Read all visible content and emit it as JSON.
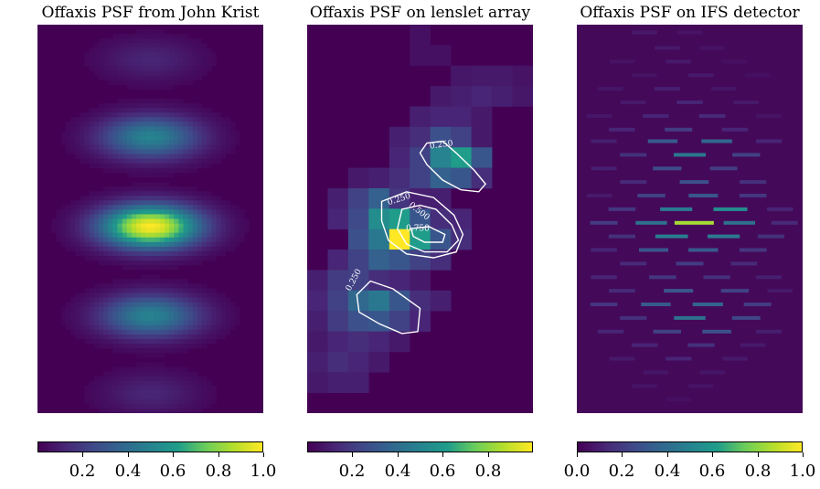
{
  "colors": {
    "viridis": [
      "#440154",
      "#482777",
      "#3f4a8a",
      "#31678e",
      "#26838f",
      "#1f9d8a",
      "#6cce5a",
      "#b6de2b",
      "#fee825"
    ],
    "background": "#440154",
    "contour": "#ffffff"
  },
  "chart_data": [
    {
      "type": "heatmap",
      "title": "Offaxis PSF from John Krist",
      "colorbar": {
        "ticks": [
          "0.2",
          "0.4",
          "0.6",
          "0.8",
          "1.0"
        ],
        "range": [
          0,
          1
        ]
      },
      "lobes": [
        {
          "y": 0.09,
          "peak": 0.12
        },
        {
          "y": 0.29,
          "peak": 0.5
        },
        {
          "y": 0.52,
          "peak": 1.0
        },
        {
          "y": 0.75,
          "peak": 0.5
        },
        {
          "y": 0.95,
          "peak": 0.12
        }
      ]
    },
    {
      "type": "heatmap",
      "title": "Offaxis PSF on lenslet array",
      "colorbar": {
        "ticks": [
          "0.2",
          "0.4",
          "0.6",
          "0.8"
        ],
        "range": [
          0,
          1
        ]
      },
      "grid": {
        "cols": 11,
        "rows": 19
      },
      "cells": [
        [
          5,
          0,
          0.05
        ],
        [
          5,
          1,
          0.05
        ],
        [
          6,
          1,
          0.05
        ],
        [
          7,
          2,
          0.07
        ],
        [
          8,
          2,
          0.08
        ],
        [
          9,
          2,
          0.08
        ],
        [
          10,
          2,
          0.06
        ],
        [
          6,
          3,
          0.08
        ],
        [
          7,
          3,
          0.1
        ],
        [
          8,
          3,
          0.12
        ],
        [
          9,
          3,
          0.1
        ],
        [
          10,
          3,
          0.07
        ],
        [
          5,
          4,
          0.1
        ],
        [
          6,
          4,
          0.12
        ],
        [
          7,
          4,
          0.12
        ],
        [
          8,
          4,
          0.08
        ],
        [
          4,
          5,
          0.1
        ],
        [
          5,
          5,
          0.15
        ],
        [
          6,
          5,
          0.28
        ],
        [
          7,
          5,
          0.22
        ],
        [
          8,
          5,
          0.08
        ],
        [
          4,
          6,
          0.12
        ],
        [
          5,
          6,
          0.22
        ],
        [
          6,
          6,
          0.5
        ],
        [
          7,
          6,
          0.62
        ],
        [
          8,
          6,
          0.3
        ],
        [
          2,
          7,
          0.08
        ],
        [
          3,
          7,
          0.1
        ],
        [
          4,
          7,
          0.15
        ],
        [
          5,
          7,
          0.22
        ],
        [
          6,
          7,
          0.35
        ],
        [
          7,
          7,
          0.3
        ],
        [
          8,
          7,
          0.15
        ],
        [
          1,
          8,
          0.1
        ],
        [
          2,
          8,
          0.22
        ],
        [
          3,
          8,
          0.35
        ],
        [
          4,
          8,
          0.18
        ],
        [
          5,
          8,
          0.1
        ],
        [
          6,
          8,
          0.1
        ],
        [
          1,
          9,
          0.12
        ],
        [
          2,
          9,
          0.25
        ],
        [
          3,
          9,
          0.55
        ],
        [
          4,
          9,
          0.62
        ],
        [
          5,
          9,
          0.3
        ],
        [
          6,
          9,
          0.15
        ],
        [
          7,
          9,
          0.12
        ],
        [
          2,
          10,
          0.28
        ],
        [
          3,
          10,
          0.45
        ],
        [
          4,
          10,
          1.0
        ],
        [
          5,
          10,
          0.62
        ],
        [
          6,
          10,
          0.3
        ],
        [
          7,
          10,
          0.15
        ],
        [
          1,
          11,
          0.12
        ],
        [
          2,
          11,
          0.22
        ],
        [
          3,
          11,
          0.35
        ],
        [
          4,
          11,
          0.3
        ],
        [
          5,
          11,
          0.22
        ],
        [
          6,
          11,
          0.15
        ],
        [
          0,
          12,
          0.1
        ],
        [
          1,
          12,
          0.2
        ],
        [
          2,
          12,
          0.22
        ],
        [
          3,
          12,
          0.15
        ],
        [
          4,
          12,
          0.12
        ],
        [
          5,
          12,
          0.08
        ],
        [
          0,
          13,
          0.12
        ],
        [
          1,
          13,
          0.22
        ],
        [
          2,
          13,
          0.38
        ],
        [
          3,
          13,
          0.45
        ],
        [
          4,
          13,
          0.3
        ],
        [
          5,
          13,
          0.15
        ],
        [
          6,
          13,
          0.1
        ],
        [
          0,
          14,
          0.1
        ],
        [
          1,
          14,
          0.2
        ],
        [
          2,
          14,
          0.28
        ],
        [
          3,
          14,
          0.3
        ],
        [
          4,
          14,
          0.22
        ],
        [
          5,
          14,
          0.12
        ],
        [
          0,
          15,
          0.08
        ],
        [
          1,
          15,
          0.12
        ],
        [
          2,
          15,
          0.15
        ],
        [
          3,
          15,
          0.12
        ],
        [
          4,
          15,
          0.08
        ],
        [
          0,
          16,
          0.1
        ],
        [
          1,
          16,
          0.15
        ],
        [
          2,
          16,
          0.12
        ],
        [
          3,
          16,
          0.08
        ],
        [
          0,
          17,
          0.08
        ],
        [
          1,
          17,
          0.1
        ],
        [
          2,
          17,
          0.1
        ]
      ],
      "contour_labels": [
        {
          "text": "0.250",
          "x": 0.595,
          "y": 0.315,
          "rot": -8
        },
        {
          "text": "0.250",
          "x": 0.41,
          "y": 0.455,
          "rot": -18
        },
        {
          "text": "0.500",
          "x": 0.49,
          "y": 0.485,
          "rot": 38
        },
        {
          "text": "0.750",
          "x": 0.49,
          "y": 0.53,
          "rot": 0
        },
        {
          "text": "0.250",
          "x": 0.215,
          "y": 0.66,
          "rot": -62
        }
      ]
    },
    {
      "type": "heatmap",
      "title": "Offaxis PSF on IFS detector",
      "colorbar": {
        "ticks": [
          "0.0",
          "0.2",
          "0.4",
          "0.6",
          "0.8",
          "1.0"
        ],
        "range": [
          0,
          1
        ]
      },
      "dashes": [
        [
          0.3,
          0.02,
          0.08
        ],
        [
          0.5,
          0.02,
          0.06
        ],
        [
          0.4,
          0.06,
          0.08
        ],
        [
          0.6,
          0.06,
          0.06
        ],
        [
          0.2,
          0.095,
          0.06
        ],
        [
          0.45,
          0.095,
          0.08
        ],
        [
          0.7,
          0.095,
          0.05
        ],
        [
          0.3,
          0.13,
          0.06
        ],
        [
          0.55,
          0.13,
          0.08
        ],
        [
          0.8,
          0.13,
          0.05
        ],
        [
          0.15,
          0.165,
          0.07
        ],
        [
          0.4,
          0.165,
          0.1
        ],
        [
          0.65,
          0.165,
          0.07
        ],
        [
          0.25,
          0.2,
          0.08
        ],
        [
          0.5,
          0.2,
          0.12
        ],
        [
          0.75,
          0.2,
          0.08
        ],
        [
          0.1,
          0.235,
          0.07
        ],
        [
          0.35,
          0.235,
          0.12
        ],
        [
          0.6,
          0.235,
          0.14
        ],
        [
          0.85,
          0.235,
          0.06
        ],
        [
          0.2,
          0.27,
          0.12
        ],
        [
          0.45,
          0.27,
          0.2
        ],
        [
          0.7,
          0.27,
          0.12
        ],
        [
          0.12,
          0.3,
          0.1
        ],
        [
          0.38,
          0.3,
          0.32
        ],
        [
          0.62,
          0.3,
          0.38
        ],
        [
          0.85,
          0.3,
          0.12
        ],
        [
          0.25,
          0.335,
          0.16
        ],
        [
          0.5,
          0.335,
          0.45
        ],
        [
          0.75,
          0.335,
          0.22
        ],
        [
          0.12,
          0.37,
          0.1
        ],
        [
          0.4,
          0.37,
          0.26
        ],
        [
          0.65,
          0.37,
          0.2
        ],
        [
          0.25,
          0.405,
          0.14
        ],
        [
          0.52,
          0.405,
          0.28
        ],
        [
          0.78,
          0.405,
          0.16
        ],
        [
          0.1,
          0.44,
          0.08
        ],
        [
          0.33,
          0.44,
          0.22
        ],
        [
          0.56,
          0.44,
          0.3
        ],
        [
          0.78,
          0.44,
          0.18
        ],
        [
          0.2,
          0.475,
          0.18
        ],
        [
          0.44,
          0.475,
          0.46
        ],
        [
          0.68,
          0.475,
          0.55
        ],
        [
          0.9,
          0.475,
          0.12
        ],
        [
          0.12,
          0.51,
          0.2
        ],
        [
          0.33,
          0.51,
          0.42
        ],
        [
          0.52,
          0.51,
          0.85
        ],
        [
          0.72,
          0.51,
          0.42
        ],
        [
          0.92,
          0.51,
          0.14
        ],
        [
          0.2,
          0.545,
          0.16
        ],
        [
          0.42,
          0.545,
          0.48
        ],
        [
          0.65,
          0.545,
          0.46
        ],
        [
          0.86,
          0.545,
          0.16
        ],
        [
          0.12,
          0.58,
          0.12
        ],
        [
          0.34,
          0.58,
          0.3
        ],
        [
          0.56,
          0.58,
          0.32
        ],
        [
          0.78,
          0.58,
          0.18
        ],
        [
          0.25,
          0.615,
          0.14
        ],
        [
          0.5,
          0.615,
          0.2
        ],
        [
          0.74,
          0.615,
          0.14
        ],
        [
          0.12,
          0.65,
          0.12
        ],
        [
          0.38,
          0.65,
          0.18
        ],
        [
          0.62,
          0.65,
          0.16
        ],
        [
          0.85,
          0.65,
          0.1
        ],
        [
          0.2,
          0.685,
          0.14
        ],
        [
          0.45,
          0.685,
          0.3
        ],
        [
          0.7,
          0.685,
          0.22
        ],
        [
          0.9,
          0.685,
          0.08
        ],
        [
          0.12,
          0.72,
          0.18
        ],
        [
          0.35,
          0.72,
          0.32
        ],
        [
          0.58,
          0.72,
          0.36
        ],
        [
          0.8,
          0.72,
          0.2
        ],
        [
          0.25,
          0.755,
          0.16
        ],
        [
          0.5,
          0.755,
          0.42
        ],
        [
          0.75,
          0.755,
          0.24
        ],
        [
          0.15,
          0.79,
          0.12
        ],
        [
          0.4,
          0.79,
          0.22
        ],
        [
          0.62,
          0.79,
          0.28
        ],
        [
          0.85,
          0.79,
          0.1
        ],
        [
          0.3,
          0.825,
          0.12
        ],
        [
          0.55,
          0.825,
          0.16
        ],
        [
          0.78,
          0.825,
          0.08
        ],
        [
          0.2,
          0.86,
          0.08
        ],
        [
          0.45,
          0.86,
          0.12
        ],
        [
          0.7,
          0.86,
          0.08
        ],
        [
          0.35,
          0.895,
          0.07
        ],
        [
          0.6,
          0.895,
          0.07
        ],
        [
          0.3,
          0.93,
          0.06
        ],
        [
          0.55,
          0.93,
          0.06
        ],
        [
          0.45,
          0.965,
          0.05
        ]
      ]
    }
  ]
}
